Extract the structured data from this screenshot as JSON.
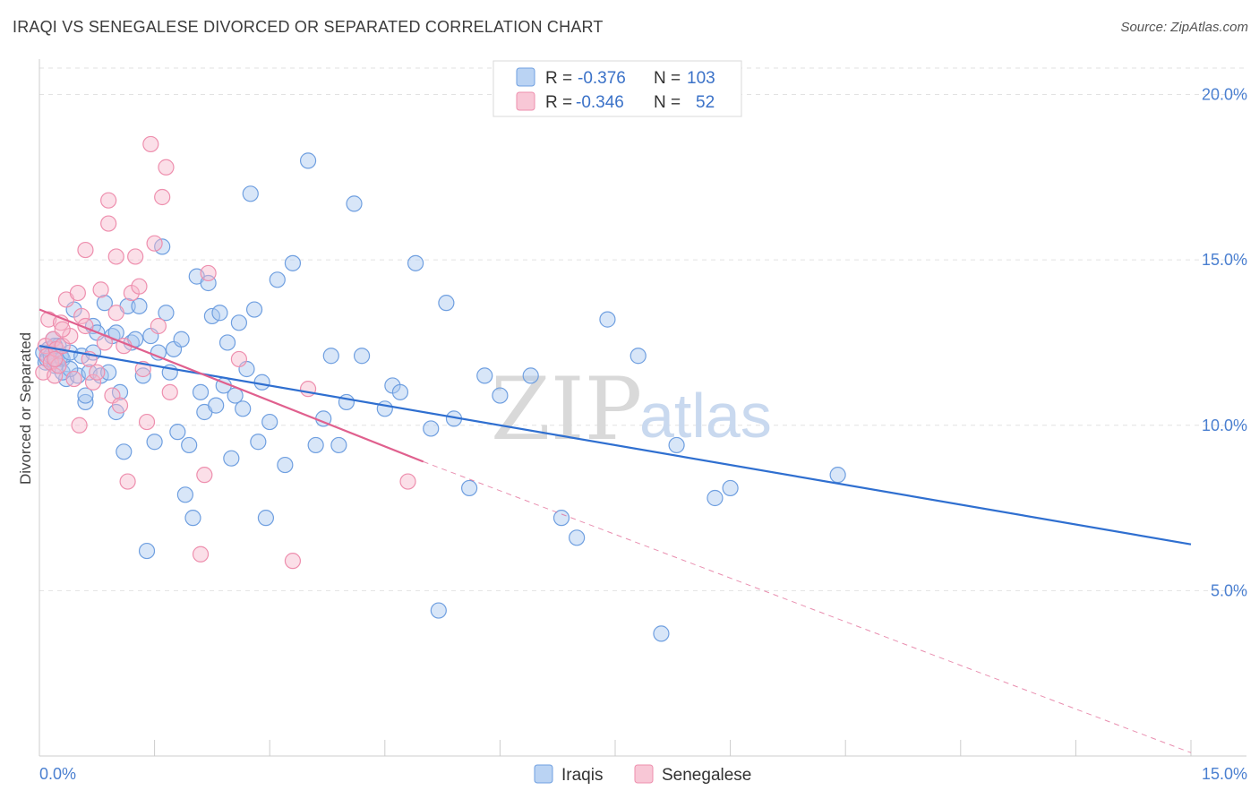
{
  "header": {
    "title": "IRAQI VS SENEGALESE DIVORCED OR SEPARATED CORRELATION CHART",
    "source": "Source: ZipAtlas.com"
  },
  "watermark": {
    "zip": "ZIP",
    "atlas": "atlas"
  },
  "legend": {
    "rows": [
      {
        "r_label": "R =",
        "r_value": "-0.376",
        "n_label": "N =",
        "n_value": "103",
        "color": "#a9c8f0"
      },
      {
        "r_label": "R =",
        "r_value": "-0.346",
        "n_label": "N =",
        "n_value": "52",
        "color": "#f6b9cc"
      }
    ]
  },
  "bottom_legend": [
    "Iraqis",
    "Senegalese"
  ],
  "chart_data": {
    "type": "scatter",
    "title": "IRAQI VS SENEGALESE DIVORCED OR SEPARATED CORRELATION CHART",
    "xlabel": "",
    "ylabel": "Divorced or Separated",
    "xlim": [
      0,
      15
    ],
    "ylim": [
      0,
      20.8
    ],
    "x_tick_labels": [
      "0.0%",
      "15.0%"
    ],
    "y_ticks": [
      5,
      10,
      15,
      20
    ],
    "y_tick_labels": [
      "5.0%",
      "10.0%",
      "15.0%",
      "20.0%"
    ],
    "grid": true,
    "legend_position": "top-center",
    "series": [
      {
        "name": "Iraqis",
        "color": "#6f9fe0",
        "fill": "#a9c8f0",
        "trend": {
          "x": [
            0,
            15
          ],
          "y": [
            12.4,
            6.4
          ],
          "color": "#2f6fd0",
          "dashed_beyond": null
        },
        "points": [
          [
            0.05,
            12.2
          ],
          [
            0.08,
            11.9
          ],
          [
            0.1,
            12.0
          ],
          [
            0.12,
            12.3
          ],
          [
            0.15,
            12.1
          ],
          [
            0.18,
            12.6
          ],
          [
            0.2,
            11.8
          ],
          [
            0.22,
            12.0
          ],
          [
            0.25,
            12.4
          ],
          [
            0.28,
            12.1
          ],
          [
            0.3,
            12.0
          ],
          [
            0.35,
            11.4
          ],
          [
            0.4,
            12.2
          ],
          [
            0.45,
            13.5
          ],
          [
            0.5,
            11.5
          ],
          [
            0.55,
            12.1
          ],
          [
            0.6,
            10.7
          ],
          [
            0.65,
            11.6
          ],
          [
            0.7,
            13.0
          ],
          [
            0.75,
            12.8
          ],
          [
            0.8,
            11.5
          ],
          [
            0.85,
            13.7
          ],
          [
            0.9,
            11.6
          ],
          [
            0.95,
            12.7
          ],
          [
            1.0,
            12.8
          ],
          [
            1.05,
            11.0
          ],
          [
            1.1,
            9.2
          ],
          [
            1.15,
            13.6
          ],
          [
            1.2,
            12.5
          ],
          [
            1.25,
            12.6
          ],
          [
            1.3,
            13.6
          ],
          [
            1.35,
            11.5
          ],
          [
            1.4,
            6.2
          ],
          [
            1.45,
            12.7
          ],
          [
            1.5,
            9.5
          ],
          [
            1.55,
            12.2
          ],
          [
            1.6,
            15.4
          ],
          [
            1.65,
            13.4
          ],
          [
            1.7,
            11.6
          ],
          [
            1.75,
            12.3
          ],
          [
            1.8,
            9.8
          ],
          [
            1.85,
            12.6
          ],
          [
            1.9,
            7.9
          ],
          [
            1.95,
            9.4
          ],
          [
            2.0,
            7.2
          ],
          [
            2.05,
            14.5
          ],
          [
            2.1,
            11.0
          ],
          [
            2.15,
            10.4
          ],
          [
            2.2,
            14.3
          ],
          [
            2.25,
            13.3
          ],
          [
            2.3,
            10.6
          ],
          [
            2.35,
            13.4
          ],
          [
            2.4,
            11.2
          ],
          [
            2.45,
            12.5
          ],
          [
            2.5,
            9.0
          ],
          [
            2.55,
            10.9
          ],
          [
            2.6,
            13.1
          ],
          [
            2.65,
            10.5
          ],
          [
            2.7,
            11.7
          ],
          [
            2.75,
            17.0
          ],
          [
            2.8,
            13.5
          ],
          [
            2.85,
            9.5
          ],
          [
            2.9,
            11.3
          ],
          [
            2.95,
            7.2
          ],
          [
            3.0,
            10.1
          ],
          [
            3.1,
            14.4
          ],
          [
            3.2,
            8.8
          ],
          [
            3.3,
            14.9
          ],
          [
            3.5,
            18.0
          ],
          [
            3.6,
            9.4
          ],
          [
            3.7,
            10.2
          ],
          [
            3.8,
            12.1
          ],
          [
            3.9,
            9.4
          ],
          [
            4.0,
            10.7
          ],
          [
            4.1,
            16.7
          ],
          [
            4.2,
            12.1
          ],
          [
            4.5,
            10.5
          ],
          [
            4.6,
            11.2
          ],
          [
            4.7,
            11.0
          ],
          [
            4.9,
            14.9
          ],
          [
            5.1,
            9.9
          ],
          [
            5.2,
            4.4
          ],
          [
            5.3,
            13.7
          ],
          [
            5.4,
            10.2
          ],
          [
            5.6,
            8.1
          ],
          [
            5.8,
            11.5
          ],
          [
            6.0,
            10.9
          ],
          [
            6.4,
            11.5
          ],
          [
            6.8,
            7.2
          ],
          [
            7.0,
            6.6
          ],
          [
            7.4,
            13.2
          ],
          [
            7.8,
            12.1
          ],
          [
            8.1,
            3.7
          ],
          [
            8.3,
            9.4
          ],
          [
            8.8,
            7.8
          ],
          [
            9.0,
            8.1
          ],
          [
            10.4,
            8.5
          ],
          [
            0.3,
            11.6
          ],
          [
            0.6,
            10.9
          ],
          [
            1.0,
            10.4
          ],
          [
            0.2,
            12.4
          ],
          [
            0.4,
            11.7
          ],
          [
            0.7,
            12.2
          ]
        ]
      },
      {
        "name": "Senegalese",
        "color": "#ee8fae",
        "fill": "#f6b9cc",
        "trend": {
          "x": [
            0,
            5.0
          ],
          "y": [
            13.5,
            8.9
          ],
          "color": "#e0608e",
          "dashed_to": [
            15,
            0.1
          ]
        },
        "points": [
          [
            0.05,
            11.6
          ],
          [
            0.08,
            12.4
          ],
          [
            0.1,
            12.1
          ],
          [
            0.12,
            13.2
          ],
          [
            0.15,
            11.9
          ],
          [
            0.18,
            12.6
          ],
          [
            0.2,
            11.5
          ],
          [
            0.22,
            12.3
          ],
          [
            0.25,
            11.8
          ],
          [
            0.28,
            13.1
          ],
          [
            0.3,
            12.4
          ],
          [
            0.35,
            13.8
          ],
          [
            0.4,
            12.7
          ],
          [
            0.45,
            11.4
          ],
          [
            0.5,
            14.0
          ],
          [
            0.52,
            10.0
          ],
          [
            0.55,
            13.3
          ],
          [
            0.6,
            13.0
          ],
          [
            0.65,
            12.0
          ],
          [
            0.7,
            11.3
          ],
          [
            0.75,
            11.6
          ],
          [
            0.8,
            14.1
          ],
          [
            0.85,
            12.5
          ],
          [
            0.9,
            16.1
          ],
          [
            0.95,
            10.9
          ],
          [
            1.0,
            13.4
          ],
          [
            1.05,
            10.6
          ],
          [
            1.1,
            12.4
          ],
          [
            1.15,
            8.3
          ],
          [
            1.2,
            14.0
          ],
          [
            1.25,
            15.1
          ],
          [
            1.3,
            14.2
          ],
          [
            1.35,
            11.7
          ],
          [
            1.4,
            10.1
          ],
          [
            1.45,
            18.5
          ],
          [
            1.5,
            15.5
          ],
          [
            1.55,
            13.0
          ],
          [
            1.6,
            16.9
          ],
          [
            1.65,
            17.8
          ],
          [
            1.7,
            11.0
          ],
          [
            2.1,
            6.1
          ],
          [
            2.15,
            8.5
          ],
          [
            2.2,
            14.6
          ],
          [
            2.6,
            12.0
          ],
          [
            3.3,
            5.9
          ],
          [
            3.5,
            11.1
          ],
          [
            4.8,
            8.3
          ],
          [
            0.6,
            15.3
          ],
          [
            0.9,
            16.8
          ],
          [
            1.0,
            15.1
          ],
          [
            0.3,
            12.9
          ],
          [
            0.2,
            12.0
          ]
        ]
      }
    ]
  }
}
